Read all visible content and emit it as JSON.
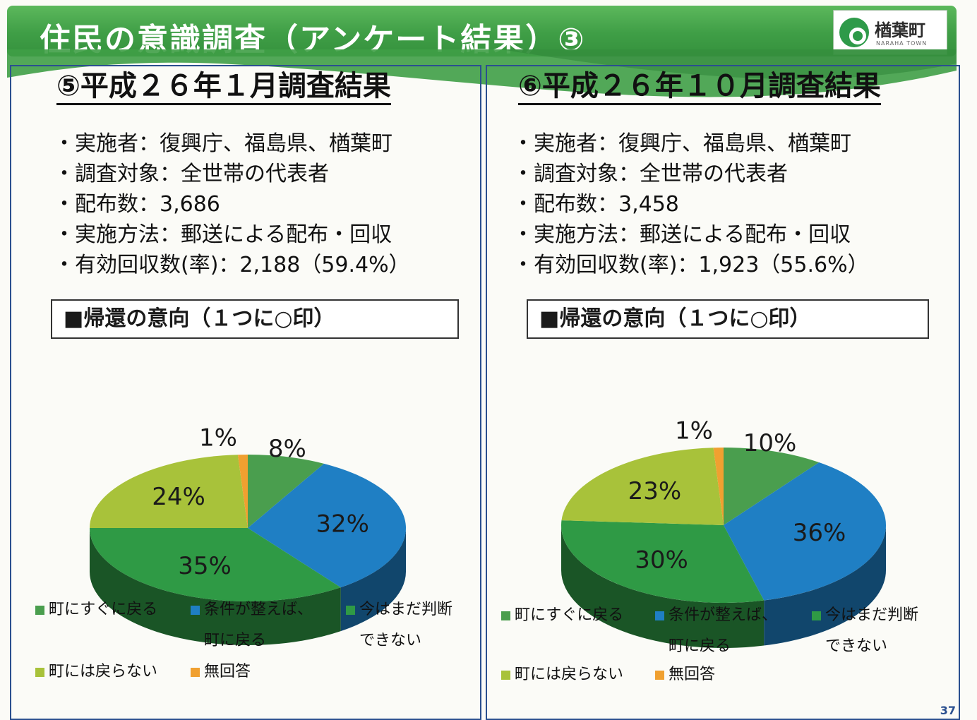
{
  "header": {
    "title": "住民の意識調査（アンケート結果）③",
    "logo_name": "楢葉町",
    "logo_sub": "NARAHA TOWN"
  },
  "colors": {
    "header_green": "#3f9e46",
    "slice_return_now": "#4a9e4e",
    "slice_return_if": "#1f7fc4",
    "slice_undecided": "#2f9a45",
    "slice_not_return": "#a8c23a",
    "slice_no_answer": "#f0a030"
  },
  "left": {
    "title": "⑤平成２６年１月調査結果",
    "info": [
      "実施者：復興庁、福島県、楢葉町",
      "調査対象：全世帯の代表者",
      "配布数：3,686",
      "実施方法：郵送による配布・回収",
      "有効回収数(率)：2,188（59.4%）"
    ],
    "question": "■帰還の意向（１つに○印）"
  },
  "right": {
    "title": "⑥平成２６年１０月調査結果",
    "info": [
      "実施者：復興庁、福島県、楢葉町",
      "調査対象：全世帯の代表者",
      "配布数：3,458",
      "実施方法：郵送による配布・回収",
      "有効回収数(率)：1,923（55.6%）"
    ],
    "question": "■帰還の意向（１つに○印）"
  },
  "legend": {
    "return_now": "町にすぐに戻る",
    "return_if_line1": "条件が整えば、",
    "return_if_line2": "町に戻る",
    "undecided_line1": "今はまだ判断",
    "undecided_line2": "できない",
    "not_return": "町には戻らない",
    "no_answer": "無回答"
  },
  "page_number": "37",
  "chart_data": [
    {
      "type": "pie",
      "title": "",
      "categories": [
        "町にすぐに戻る",
        "条件が整えば、町に戻る",
        "今はまだ判断できない",
        "町には戻らない",
        "無回答"
      ],
      "values": [
        8,
        32,
        35,
        24,
        1
      ],
      "labels": [
        "8%",
        "32%",
        "35%",
        "24%",
        "1%"
      ]
    },
    {
      "type": "pie",
      "title": "",
      "categories": [
        "町にすぐに戻る",
        "条件が整えば、町に戻る",
        "今はまだ判断できない",
        "町には戻らない",
        "無回答"
      ],
      "values": [
        10,
        36,
        30,
        23,
        1
      ],
      "labels": [
        "10%",
        "36%",
        "30%",
        "23%",
        "1%"
      ]
    }
  ]
}
